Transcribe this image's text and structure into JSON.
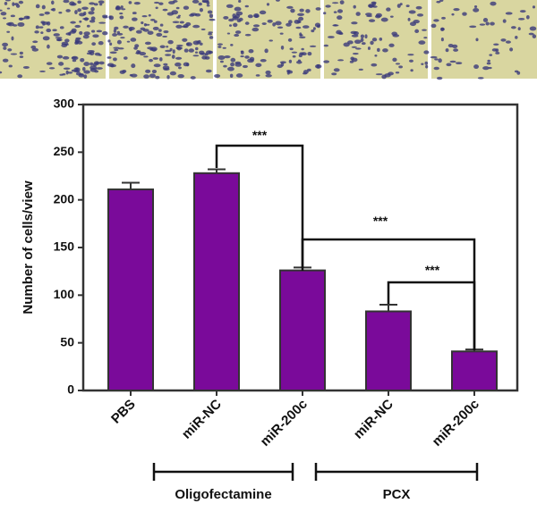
{
  "chart_data": {
    "type": "bar",
    "y_label": "Number of cells/view",
    "categories": [
      "PBS",
      "miR-NC",
      "miR-200c",
      "miR-NC",
      "miR-200c"
    ],
    "values": [
      211,
      228,
      126,
      83,
      41
    ],
    "errors": [
      7,
      4,
      3,
      7,
      2
    ],
    "color": "#7a0a9a",
    "ylim": [
      0,
      300
    ],
    "yticks": [
      0,
      50,
      100,
      150,
      200,
      250,
      300
    ],
    "groups": [
      "Oligofectamine",
      "PCX"
    ],
    "annotations": [
      "***",
      "***",
      "***"
    ]
  }
}
